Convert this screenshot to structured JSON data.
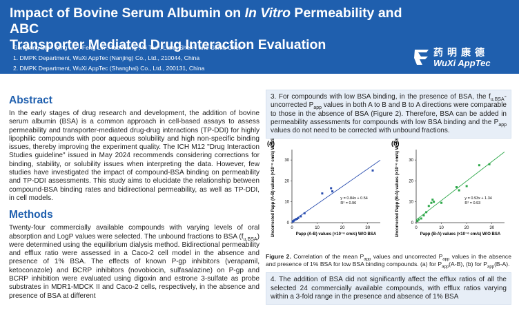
{
  "header": {
    "title_line1_pre": "Impact of Bovine Serum Albumin on ",
    "title_line1_italic": "In Vitro",
    "title_line1_post": " Permeability and ABC",
    "title_line2": "Transporter Mediated Drug Interaction Evaluation",
    "authors": "Gongfang Shi¹, Qing Liu², Feng Lin¹, Tao Xiong², Yi Tao², Liang Shen², and Genfu Chen²",
    "affiliation1": "1.  DMPK Department, WuXi AppTec (Nanjing) Co., Ltd., 210044, China",
    "affiliation2": "2.  DMPK Department, WuXi AppTec (Shanghai) Co., Ltd., 200131, China",
    "logo_cn": "药明康德",
    "logo_en": "WuXi AppTec"
  },
  "abstract": {
    "heading": "Abstract",
    "text": "In the early stages of drug research and development, the addition of bovine serum albumin (BSA) is a common approach in cell-based assays to assess permeability and transporter-mediated drug-drug interactions (TP-DDI) for highly lipophilic compounds with poor aqueous solubility and high non-specific binding issues, thereby improving the experiment quality. The ICH M12 \"Drug Interaction Studies guideline\" issued in May 2024 recommends considering corrections for binding, stability, or solubility issues when interpreting the data. However, few studies have investigated the impact of compound-BSA binding on permeability and TP-DDI assessments. This study aims to elucidate the relationship between compound-BSA binding rates and bidirectional permeability, as well as TP-DDI, in cell models."
  },
  "methods": {
    "heading": "Methods",
    "text_pre": "Twenty-four commercially available compounds with varying levels of oral absorption and LogP values were selected. The unbound fractions to BSA (f",
    "text_sub": "u,BSA",
    "text_post": ") were determined using the equilibrium dialysis method. Bidirectional permeability and efflux ratio were assessed in a Caco-2 cell model in the absence and presence of 1% BSA. The effects of known P-gp inhibitors (verapamil, ketoconazole) and BCRP inhibitors (novobiocin, sulfasalazine) on P-gp and BCRP inhibition were evaluated using digoxin and estrone 3-sulfate as probe substrates in MDR1-MDCK II and Caco-2 cells, respectively, in the absence and presence of BSA at different"
  },
  "result3": {
    "p1": "3. For compounds with low BSA binding, in the presence of BSA, the f",
    "p1_sub": "u,BSA",
    "p2": "-uncorrected P",
    "p2_sub": "app",
    "p3": " values in both A to B and B to A directions were comparable to those in the absence of BSA (Figure 2). Therefore, BSA can be added in permeability assessments for compounds with low BSA binding and the P",
    "p3_sub": "app",
    "p4": " values do not need to be corrected with unbound fractions."
  },
  "figure": {
    "caption_bold": "Figure 2.",
    "caption_a": " Correlation of the mean P",
    "caption_a_sub": "app",
    "caption_b": " values and uncorrected P",
    "caption_b_sub": "app",
    "caption_c": " values in the absence and presence of 1% BSA for low BSA binding compounds. (a) for P",
    "caption_c_sub": "app",
    "caption_d": "(A-B), (b) for P",
    "caption_d_sub": "app",
    "caption_e": "(B-A)."
  },
  "result4": {
    "text": "4. The addition of BSA did not significantly affect the efflux ratios of all the selected 24 commercially available compounds, with efflux ratios varying within a 3-fold range in the presence and absence of 1% BSA"
  },
  "chart_data": [
    {
      "type": "scatter",
      "panel": "(a)",
      "xlabel": "Papp (A-B) values (×10⁻⁶ cm/s) W/O BSA",
      "ylabel": "Uncorrected Papp (A-B) values (×10⁻⁶ cm/s) W/ BSA",
      "xlim": [
        0,
        35
      ],
      "ylim": [
        0,
        35
      ],
      "xticks": [
        0,
        10,
        20,
        30
      ],
      "yticks": [
        0,
        10,
        20,
        30
      ],
      "equation": "y = 0.84x + 0.54",
      "r2": "R² = 0.96",
      "color": "#2b4fb0",
      "points": [
        [
          0.3,
          0.5
        ],
        [
          0.6,
          0.8
        ],
        [
          1.0,
          1.2
        ],
        [
          1.5,
          1.6
        ],
        [
          2.0,
          1.8
        ],
        [
          2.5,
          2.2
        ],
        [
          3.5,
          3.0
        ],
        [
          5.0,
          4.5
        ],
        [
          12.0,
          14.0
        ],
        [
          15.5,
          16.5
        ],
        [
          16.0,
          15.0
        ],
        [
          32.0,
          25.0
        ]
      ]
    },
    {
      "type": "scatter",
      "panel": "(b)",
      "xlabel": "Papp (B-A) values (×10⁻⁶ cm/s) W/O BSA",
      "ylabel": "Uncorrected Papp (B-A) values (×10⁻⁶ cm/s) W/ BSA",
      "xlim": [
        0,
        35
      ],
      "ylim": [
        0,
        35
      ],
      "xticks": [
        0,
        10,
        20,
        30
      ],
      "yticks": [
        0,
        10,
        20,
        30
      ],
      "equation": "y = 0.93x + 1.34",
      "r2": "R² = 0.93",
      "color": "#2ea84a",
      "points": [
        [
          0.5,
          0.8
        ],
        [
          1.0,
          1.5
        ],
        [
          2.0,
          2.0
        ],
        [
          3.0,
          3.5
        ],
        [
          4.0,
          5.0
        ],
        [
          5.0,
          8.0
        ],
        [
          6.0,
          9.5
        ],
        [
          6.5,
          11.0
        ],
        [
          7.0,
          10.0
        ],
        [
          10.0,
          9.5
        ],
        [
          16.0,
          17.0
        ],
        [
          17.0,
          15.5
        ],
        [
          20.0,
          17.5
        ],
        [
          25.0,
          27.5
        ],
        [
          29.0,
          28.0
        ]
      ]
    }
  ]
}
